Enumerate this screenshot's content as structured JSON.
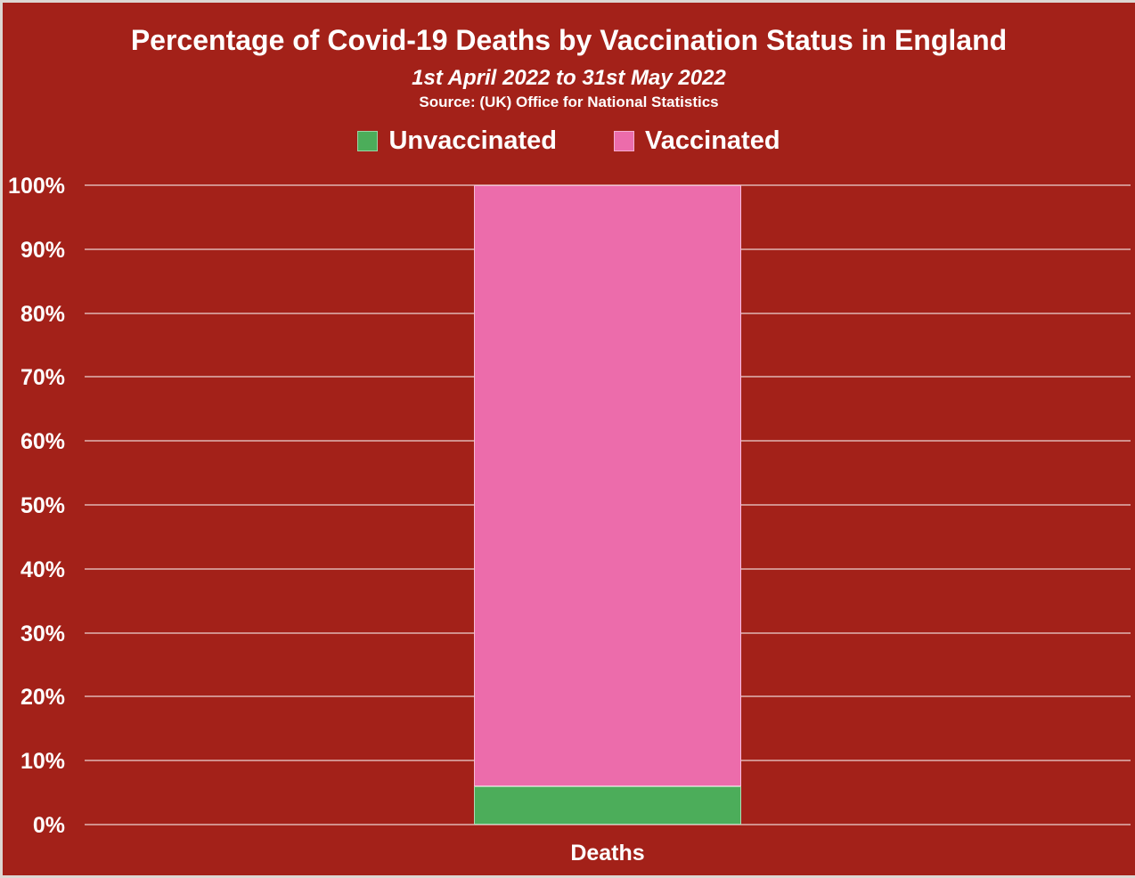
{
  "chart_data": {
    "type": "bar",
    "stacked": true,
    "title": "Percentage of Covid-19 Deaths by Vaccination Status in England",
    "subtitle": "1st April 2022 to 31st May 2022",
    "source": "Source: (UK) Office for National Statistics",
    "categories": [
      "Deaths"
    ],
    "series": [
      {
        "name": "Unvaccinated",
        "values": [
          6
        ],
        "color": "#4cad5a"
      },
      {
        "name": "Vaccinated",
        "values": [
          94
        ],
        "color": "#ec6cab"
      }
    ],
    "ylim": [
      0,
      100
    ],
    "yticks": [
      {
        "value": 0,
        "label": "0%"
      },
      {
        "value": 10,
        "label": "10%"
      },
      {
        "value": 20,
        "label": "20%"
      },
      {
        "value": 30,
        "label": "30%"
      },
      {
        "value": 40,
        "label": "40%"
      },
      {
        "value": 50,
        "label": "50%"
      },
      {
        "value": 60,
        "label": "60%"
      },
      {
        "value": 70,
        "label": "70%"
      },
      {
        "value": 80,
        "label": "80%"
      },
      {
        "value": 90,
        "label": "90%"
      },
      {
        "value": 100,
        "label": "100%"
      }
    ],
    "grid": true,
    "legend_position": "top",
    "colors": {
      "background": "#a32119",
      "text": "#ffffff",
      "gridline": "rgba(255,255,255,0.5)",
      "frame_border": "#ddd8d3"
    }
  }
}
